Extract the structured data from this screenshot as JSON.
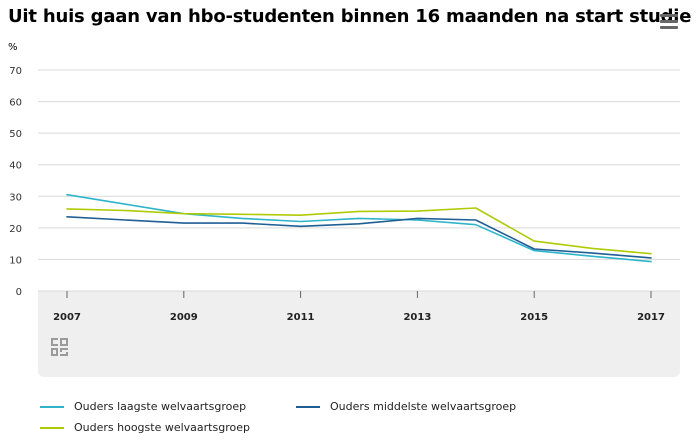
{
  "header": {
    "title": "Uit huis gaan van hbo-studenten binnen 16 maanden na start studie",
    "menu_icon": "hamburger-menu-icon"
  },
  "chart_data": {
    "type": "line",
    "title": "Uit huis gaan van hbo-studenten binnen 16 maanden na start studie",
    "ylabel": "%",
    "xlabel": "",
    "ylim": [
      0,
      70
    ],
    "yticks": [
      0,
      10,
      20,
      30,
      40,
      50,
      60,
      70
    ],
    "xlim": [
      2007,
      2017
    ],
    "xticks": [
      2007,
      2009,
      2011,
      2013,
      2015,
      2017
    ],
    "grid": true,
    "legend_position": "bottom",
    "x": [
      2007,
      2008,
      2009,
      2010,
      2011,
      2012,
      2013,
      2014,
      2015,
      2016,
      2017
    ],
    "series": [
      {
        "name": "Ouders laagste welvaartsgroep",
        "color": "#2fb4c9",
        "values": [
          30.5,
          27.5,
          24.5,
          23.0,
          22.0,
          23.0,
          22.5,
          21.0,
          12.8,
          11.0,
          9.3
        ]
      },
      {
        "name": "Ouders middelste welvaartsgroep",
        "color": "#1f5f96",
        "values": [
          23.5,
          22.5,
          21.5,
          21.5,
          20.5,
          21.3,
          23.0,
          22.5,
          13.3,
          12.0,
          10.5
        ]
      },
      {
        "name": "Ouders hoogste welvaartsgroep",
        "color": "#afcb05",
        "values": [
          26.0,
          25.5,
          24.5,
          24.3,
          24.0,
          25.2,
          25.3,
          26.3,
          15.8,
          13.5,
          11.8
        ]
      }
    ]
  },
  "colors": {
    "grid": "#d9d9d9",
    "axis_band": "#efefef",
    "tick": "#666666",
    "logo": "#9a9a9a"
  },
  "logo_icon": "cbs-logo-icon"
}
